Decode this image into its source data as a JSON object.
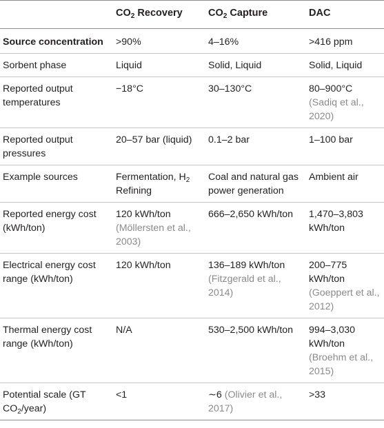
{
  "header": {
    "col0": "",
    "col1": {
      "pre": "CO",
      "sub": "2",
      "post": " Recovery"
    },
    "col2": {
      "pre": "CO",
      "sub": "2",
      "post": " Capture"
    },
    "col3": "DAC"
  },
  "rows": [
    {
      "label": "Source concentration",
      "recovery": ">90%",
      "capture": "4–16%",
      "dac": ">416 ppm"
    },
    {
      "label": "Sorbent phase",
      "recovery": "Liquid",
      "capture": "Solid, Liquid",
      "dac": "Solid, Liquid"
    },
    {
      "label": "Reported output temperatures",
      "recovery": "−18°C",
      "capture": "30–130°C",
      "dac": "80–900°C",
      "dac_cite": "(Sadiq et al., 2020)"
    },
    {
      "label": "Reported output pressures",
      "recovery": "20–57 bar (liquid)",
      "capture": "0.1–2 bar",
      "dac": "1–100 bar"
    },
    {
      "label": "Example sources",
      "recovery_pre": "Fermentation, H",
      "recovery_sub": "2",
      "recovery_post": " Refining",
      "capture": "Coal and natural gas power generation",
      "dac": "Ambient air"
    },
    {
      "label": "Reported energy cost (kWh/ton)",
      "recovery": "120 kWh/ton",
      "recovery_cite": "(Möllersten et al., 2003)",
      "capture": "666–2,650 kWh/ton",
      "dac": "1,470–3,803 kWh/ton"
    },
    {
      "label": "Electrical energy cost range (kWh/ton)",
      "recovery": "120 kWh/ton",
      "capture": "136–189 kWh/ton",
      "capture_cite": "(Fitzgerald et al., 2014)",
      "dac": "200–775 kWh/ton",
      "dac_cite": "(Goeppert et al., 2012)"
    },
    {
      "label": "Thermal energy cost range (kWh/ton)",
      "recovery": "N/A",
      "capture": "530–2,500 kWh/ton",
      "dac": "994–3,030 kWh/ton",
      "dac_cite": "(Broehm et al., 2015)"
    },
    {
      "label_pre": "Potential scale (GT CO",
      "label_sub": "2",
      "label_post": "/year)",
      "recovery": "<1",
      "capture": "∼6",
      "capture_cite": "(Olivier et al., 2017)",
      "dac": ">33"
    }
  ]
}
